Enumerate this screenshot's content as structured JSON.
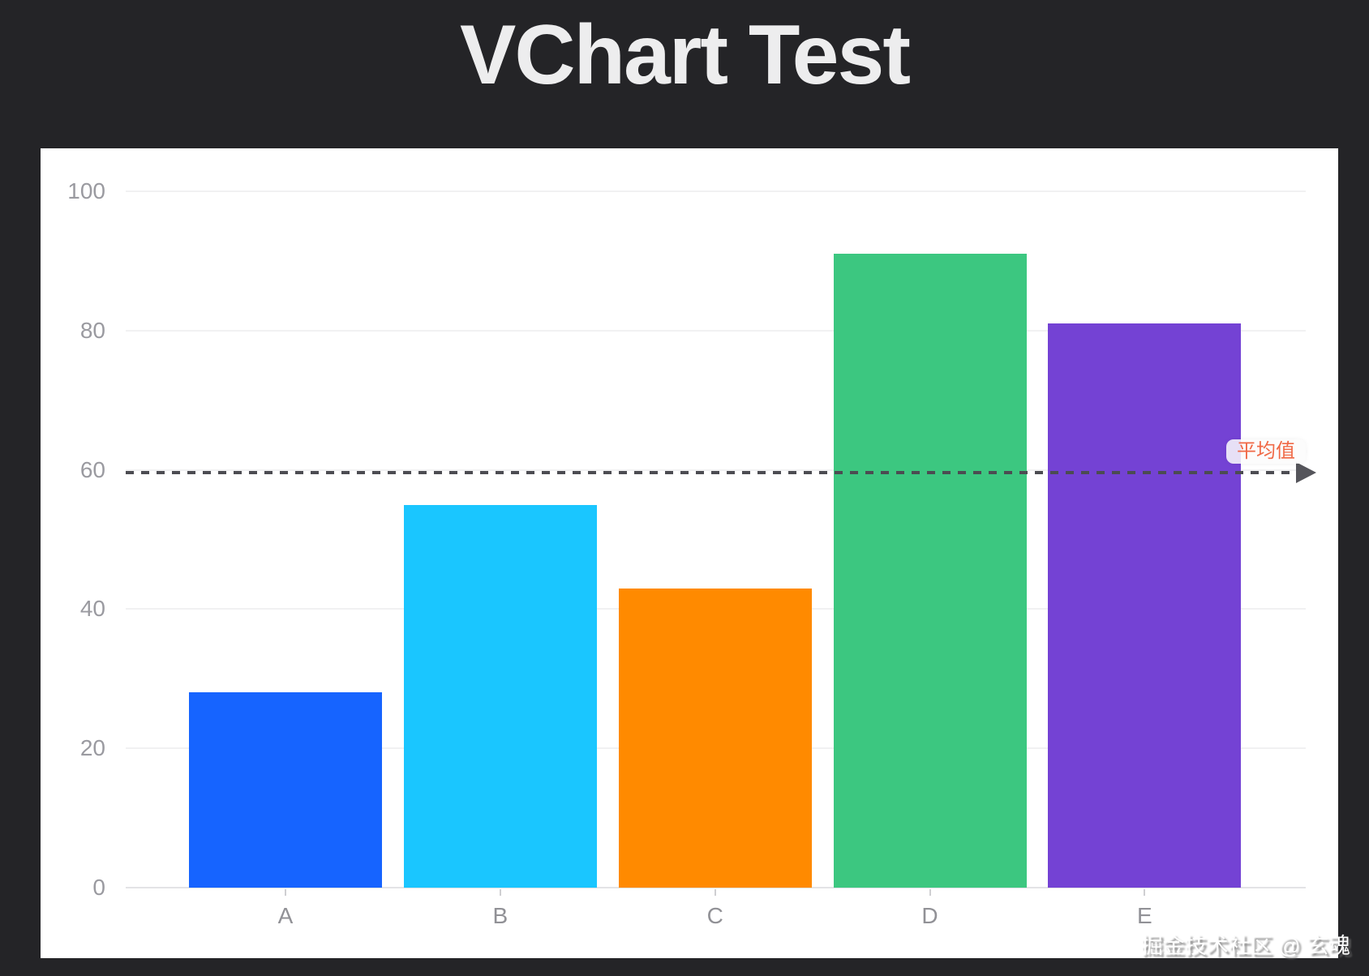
{
  "page": {
    "title": "VChart Test",
    "watermark": "掘金技术社区 @ 玄魂",
    "background_color": "#242427",
    "card_color": "#ffffff"
  },
  "chart_data": {
    "type": "bar",
    "title": "VChart Test",
    "categories": [
      "A",
      "B",
      "C",
      "D",
      "E"
    ],
    "values": [
      28,
      55,
      43,
      91,
      81
    ],
    "bar_colors": [
      "#1664FF",
      "#1AC6FF",
      "#FF8A00",
      "#3CC780",
      "#7442D4"
    ],
    "ylim": [
      0,
      100
    ],
    "y_ticks": [
      0,
      20,
      40,
      60,
      80,
      100
    ],
    "xlabel": "",
    "ylabel": "",
    "grid": "horizontal",
    "legend": "none",
    "axis_label_color": "#9a9aa0",
    "markline": {
      "label": "平均值",
      "value": 59.6,
      "line_style": "dashed",
      "line_color": "#4c4c52",
      "label_color": "#f06946",
      "arrow": "right"
    }
  }
}
